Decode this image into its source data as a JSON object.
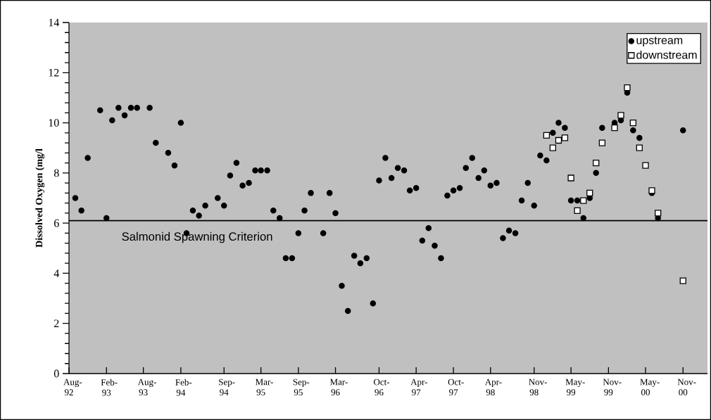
{
  "chart_data": {
    "type": "scatter",
    "ylabel": "Dissolved Oxygen (mg/l",
    "xlim": [
      "1992-08",
      "2001-03"
    ],
    "ylim": [
      0,
      14
    ],
    "yticks": [
      0,
      2,
      4,
      6,
      8,
      10,
      12,
      14
    ],
    "xticks": [
      {
        "value": "1992-08",
        "label": "Aug-92"
      },
      {
        "value": "1993-02",
        "label": "Feb-93"
      },
      {
        "value": "1993-08",
        "label": "Aug-93"
      },
      {
        "value": "1994-02",
        "label": "Feb-94"
      },
      {
        "value": "1994-09",
        "label": "Sep-94"
      },
      {
        "value": "1995-03",
        "label": "Mar-95"
      },
      {
        "value": "1995-09",
        "label": "Sep-95"
      },
      {
        "value": "1996-03",
        "label": "Mar-96"
      },
      {
        "value": "1996-10",
        "label": "Oct-96"
      },
      {
        "value": "1997-04",
        "label": "Apr-97"
      },
      {
        "value": "1997-10",
        "label": "Oct-97"
      },
      {
        "value": "1998-04",
        "label": "Apr-98"
      },
      {
        "value": "1998-11",
        "label": "Nov-98"
      },
      {
        "value": "1999-05",
        "label": "May-99"
      },
      {
        "value": "1999-11",
        "label": "Nov-99"
      },
      {
        "value": "2000-05",
        "label": "May-00"
      },
      {
        "value": "2000-11",
        "label": "Nov-00"
      }
    ],
    "legend": "top right",
    "ref_lines": [
      {
        "axis": "y",
        "value": 6.1,
        "label": "Salmonid Spawning Criterion",
        "color": "#000000"
      }
    ],
    "series": [
      {
        "name": "upstream",
        "color": "#000000",
        "marker": "circle",
        "x": [
          "1992-09",
          "1992-10",
          "1992-11",
          "1993-01",
          "1993-02",
          "1993-03",
          "1993-04",
          "1993-05",
          "1993-06",
          "1993-07",
          "1993-09",
          "1993-10",
          "1993-12",
          "1994-01",
          "1994-02",
          "1994-03",
          "1994-04",
          "1994-05",
          "1994-06",
          "1994-08",
          "1994-09",
          "1994-10",
          "1994-11",
          "1994-12",
          "1995-01",
          "1995-02",
          "1995-03",
          "1995-04",
          "1995-05",
          "1995-06",
          "1995-07",
          "1995-08",
          "1995-09",
          "1995-10",
          "1995-11",
          "1996-01",
          "1996-02",
          "1996-03",
          "1996-04",
          "1996-05",
          "1996-06",
          "1996-07",
          "1996-08",
          "1996-09",
          "1996-10",
          "1996-11",
          "1996-12",
          "1997-01",
          "1997-02",
          "1997-03",
          "1997-04",
          "1997-05",
          "1997-06",
          "1997-07",
          "1997-08",
          "1997-09",
          "1997-10",
          "1997-11",
          "1997-12",
          "1998-01",
          "1998-02",
          "1998-03",
          "1998-04",
          "1998-05",
          "1998-06",
          "1998-07",
          "1998-08",
          "1998-09",
          "1998-10",
          "1998-11",
          "1998-12",
          "1999-01",
          "1999-02",
          "1999-03",
          "1999-04",
          "1999-05",
          "1999-06",
          "1999-07",
          "1999-08",
          "1999-09",
          "1999-10",
          "1999-12",
          "2000-01",
          "2000-02",
          "2000-03",
          "2000-04",
          "2000-06",
          "2000-07",
          "2000-11"
        ],
        "values": [
          7.0,
          6.5,
          8.6,
          10.5,
          6.2,
          10.1,
          10.6,
          10.3,
          10.6,
          10.6,
          10.6,
          9.2,
          8.8,
          8.3,
          10.0,
          5.6,
          6.5,
          6.3,
          6.7,
          7.0,
          6.7,
          7.9,
          8.4,
          7.5,
          7.6,
          8.1,
          8.1,
          8.1,
          6.5,
          6.2,
          4.6,
          4.6,
          5.6,
          6.5,
          7.2,
          5.6,
          7.2,
          6.4,
          3.5,
          2.5,
          4.7,
          4.4,
          4.6,
          2.8,
          7.7,
          8.6,
          7.8,
          8.2,
          8.1,
          7.3,
          7.4,
          5.3,
          5.8,
          5.1,
          4.6,
          7.1,
          7.3,
          7.4,
          8.2,
          8.6,
          7.8,
          8.1,
          7.5,
          7.6,
          5.4,
          5.7,
          5.6,
          6.9,
          7.6,
          6.7,
          8.7,
          8.5,
          9.6,
          10.0,
          9.8,
          6.9,
          6.9,
          6.2,
          7.0,
          8.0,
          9.8,
          10.0,
          10.1,
          11.2,
          9.7,
          9.4,
          7.2,
          6.2,
          9.7
        ]
      },
      {
        "name": "downstream",
        "color": "#ffffff",
        "marker": "square",
        "x": [
          "1999-01",
          "1999-02",
          "1999-03",
          "1999-04",
          "1999-05",
          "1999-06",
          "1999-07",
          "1999-08",
          "1999-09",
          "1999-10",
          "1999-12",
          "2000-01",
          "2000-02",
          "2000-03",
          "2000-04",
          "2000-05",
          "2000-06",
          "2000-07",
          "2000-11"
        ],
        "values": [
          9.5,
          9.0,
          9.3,
          9.4,
          7.8,
          6.5,
          6.9,
          7.2,
          8.4,
          9.2,
          9.8,
          10.3,
          11.4,
          10.0,
          9.0,
          8.3,
          7.3,
          6.4,
          3.7
        ]
      }
    ]
  }
}
